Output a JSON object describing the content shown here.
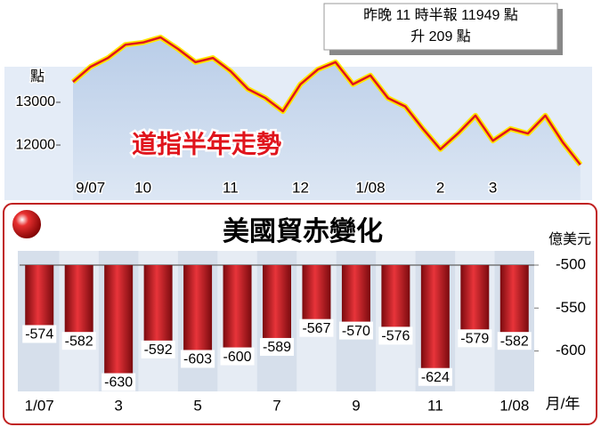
{
  "chart_data": [
    {
      "type": "line",
      "title": "道指半年走勢",
      "y_unit": "點",
      "annotations": [
        "昨晚 11 時半報 11949 點",
        "升 209 點"
      ],
      "categories": [
        null,
        "9/07",
        null,
        null,
        "10",
        null,
        null,
        null,
        null,
        "11",
        null,
        null,
        null,
        "12",
        null,
        null,
        null,
        "1/08",
        null,
        null,
        null,
        "2",
        null,
        null,
        "3",
        null,
        null,
        null,
        null,
        null
      ],
      "values": [
        13480,
        13830,
        14040,
        14350,
        14400,
        14520,
        14250,
        13940,
        14040,
        13730,
        13310,
        13100,
        12790,
        13420,
        13770,
        13940,
        13420,
        13630,
        13100,
        12900,
        12380,
        11900,
        12270,
        12690,
        12100,
        12380,
        12270,
        12690,
        12060,
        11540
      ],
      "color": "#e0141c",
      "ylim": [
        10710,
        14770
      ],
      "yticks": [
        12000,
        13000
      ],
      "grid": false
    },
    {
      "type": "bar",
      "title": "美國貿赤變化",
      "y_unit": "億美元",
      "x_unit": "月/年",
      "categories": [
        "1/07",
        null,
        "3",
        null,
        "5",
        null,
        "7",
        null,
        "9",
        null,
        "11",
        null,
        "1/08"
      ],
      "values": [
        -574,
        -582,
        -630,
        -592,
        -603,
        -600,
        -589,
        -567,
        -570,
        -576,
        -624,
        -579,
        -582
      ],
      "color": "#c8141c",
      "ylim": [
        -645,
        -500
      ],
      "yticks": [
        -500,
        -550,
        -600
      ],
      "grid": false
    }
  ]
}
